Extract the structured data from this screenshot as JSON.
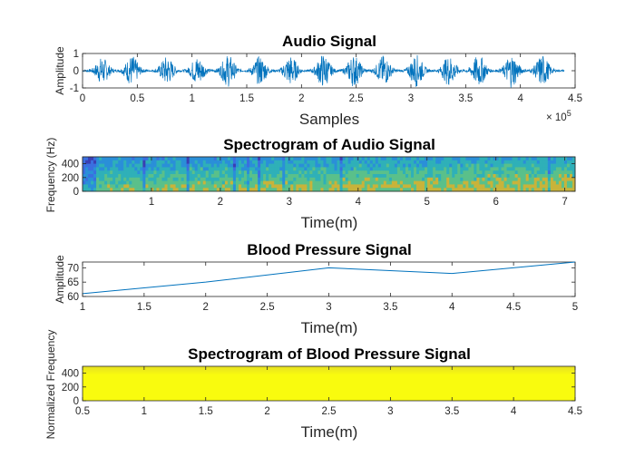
{
  "colors": {
    "line": "#0072BD",
    "axis": "#262626",
    "yellow": "#f9fb0e",
    "spec_blue": "#3a6fe0",
    "spec_dark": "#3a3fb3",
    "spec_teal": "#2fb0b8",
    "spec_green": "#5ac08a",
    "spec_gold": "#c8b33a"
  },
  "chart_data": [
    {
      "id": "audio",
      "type": "line",
      "title": "Audio Signal",
      "xlabel": "Samples",
      "ylabel": "Amplitude",
      "xlim": [
        0,
        450000
      ],
      "ylim": [
        -1,
        1
      ],
      "x_exponent_base": "× 10",
      "x_exponent_power": "5",
      "xticks": [
        0,
        50000,
        100000,
        150000,
        200000,
        250000,
        300000,
        350000,
        400000,
        450000
      ],
      "xtick_labels": [
        "0",
        "0.5",
        "1",
        "1.5",
        "2",
        "2.5",
        "3",
        "3.5",
        "4",
        "4.5"
      ],
      "yticks": [
        -1,
        0,
        1
      ],
      "ytick_labels": [
        "-1",
        "0",
        "1"
      ],
      "signal_end": 440000,
      "bursts": [
        {
          "center": 18000,
          "amp": 0.75
        },
        {
          "center": 45000,
          "amp": 0.85
        },
        {
          "center": 77000,
          "amp": 0.8
        },
        {
          "center": 105000,
          "amp": 0.8
        },
        {
          "center": 133000,
          "amp": 0.9
        },
        {
          "center": 162000,
          "amp": 0.8
        },
        {
          "center": 190000,
          "amp": 0.85
        },
        {
          "center": 220000,
          "amp": 0.95
        },
        {
          "center": 248000,
          "amp": 0.9
        },
        {
          "center": 275000,
          "amp": 0.85
        },
        {
          "center": 305000,
          "amp": 0.9
        },
        {
          "center": 335000,
          "amp": 0.85
        },
        {
          "center": 362000,
          "amp": 0.9
        },
        {
          "center": 392000,
          "amp": 0.95
        },
        {
          "center": 420000,
          "amp": 0.9
        }
      ]
    },
    {
      "id": "audio_spec",
      "type": "heatmap",
      "title": "Spectrogram of Audio Signal",
      "xlabel": "Time(m)",
      "ylabel": "Frequency (Hz)",
      "xlim": [
        0,
        7.15
      ],
      "ylim": [
        0,
        500
      ],
      "xticks": [
        1,
        2,
        3,
        4,
        5,
        6,
        7
      ],
      "xtick_labels": [
        "1",
        "2",
        "3",
        "4",
        "5",
        "6",
        "7"
      ],
      "yticks": [
        0,
        200,
        400
      ],
      "ytick_labels": [
        "0",
        "200",
        "400"
      ]
    },
    {
      "id": "bp",
      "type": "line",
      "title": "Blood Pressure Signal",
      "xlabel": "Time(m)",
      "ylabel": "Amplitude",
      "xlim": [
        1,
        5
      ],
      "ylim": [
        60,
        72
      ],
      "xticks": [
        1,
        1.5,
        2,
        2.5,
        3,
        3.5,
        4,
        4.5,
        5
      ],
      "xtick_labels": [
        "1",
        "1.5",
        "2",
        "2.5",
        "3",
        "3.5",
        "4",
        "4.5",
        "5"
      ],
      "yticks": [
        60,
        65,
        70
      ],
      "ytick_labels": [
        "60",
        "65",
        "70"
      ],
      "series": [
        {
          "x": [
            1,
            2,
            3,
            4,
            5
          ],
          "y": [
            61,
            65,
            70,
            68,
            72
          ]
        }
      ]
    },
    {
      "id": "bp_spec",
      "type": "heatmap",
      "title": "Spectrogram of Blood Pressure Signal",
      "xlabel": "Time(m)",
      "ylabel": "Normalized Frequency",
      "xlim": [
        0.5,
        4.5
      ],
      "ylim": [
        0,
        500
      ],
      "xticks": [
        0.5,
        1,
        1.5,
        2,
        2.5,
        3,
        3.5,
        4,
        4.5
      ],
      "xtick_labels": [
        "0.5",
        "1",
        "1.5",
        "2",
        "2.5",
        "3",
        "3.5",
        "4",
        "4.5"
      ],
      "yticks": [
        0,
        200,
        400
      ],
      "ytick_labels": [
        "0",
        "200",
        "400"
      ]
    }
  ]
}
